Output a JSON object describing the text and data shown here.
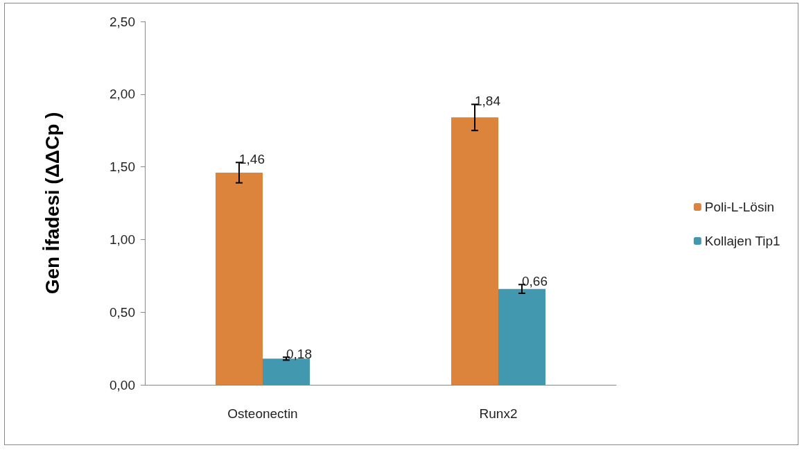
{
  "chart_data": {
    "type": "bar",
    "ylabel": "Gen İfadesi (ΔΔCp )",
    "categories": [
      "Osteonectin",
      "Runx2"
    ],
    "series": [
      {
        "name": "Poli-L-Lösin",
        "color": "#dd843c",
        "values": [
          1.46,
          1.84
        ],
        "errors": [
          0.07,
          0.09
        ],
        "value_labels": [
          "1,46",
          "1,84"
        ]
      },
      {
        "name": "Kollajen Tip1",
        "color": "#4198af",
        "values": [
          0.18,
          0.66
        ],
        "errors": [
          0.01,
          0.03
        ],
        "value_labels": [
          "0,18",
          "0,66"
        ]
      }
    ],
    "ylim": [
      0,
      2.5
    ],
    "yticks": [
      {
        "value": 0,
        "label": "0,00"
      },
      {
        "value": 0.5,
        "label": "0,50"
      },
      {
        "value": 1,
        "label": "1,00"
      },
      {
        "value": 1.5,
        "label": "1,50"
      },
      {
        "value": 2,
        "label": "2,00"
      },
      {
        "value": 2.5,
        "label": "2,50"
      }
    ],
    "grid": false,
    "legend": "right"
  }
}
